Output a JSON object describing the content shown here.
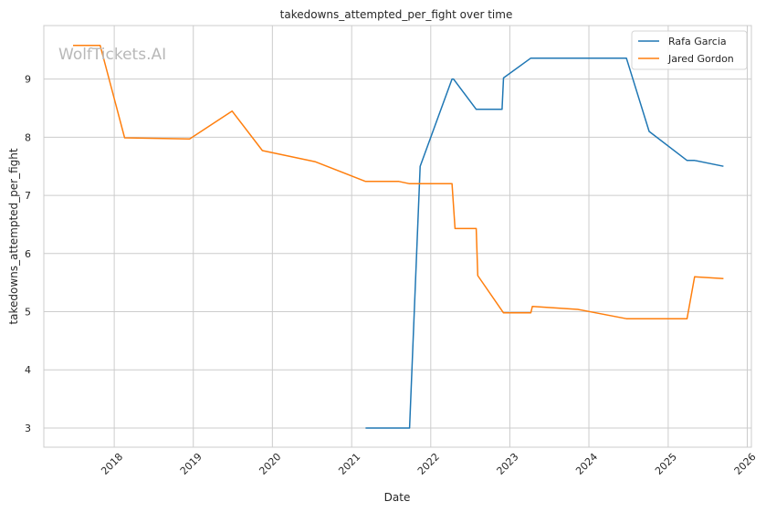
{
  "chart_data": {
    "type": "line",
    "title": "takedowns_attempted_per_fight over time",
    "xlabel": "Date",
    "ylabel": "takedowns_attempted_per_fight",
    "watermark": "WolfTickets.AI",
    "x_ticks": [
      "2018",
      "2019",
      "2020",
      "2021",
      "2022",
      "2023",
      "2024",
      "2025",
      "2026"
    ],
    "y_ticks": [
      "3",
      "4",
      "5",
      "6",
      "7",
      "8",
      "9"
    ],
    "xlim": [
      "2017-02-10",
      "2026-01-20"
    ],
    "ylim": [
      2.67,
      9.92
    ],
    "grid": true,
    "legend_position": "top-right",
    "series": [
      {
        "name": "Rafa Garcia",
        "color": "#1f77b4",
        "points": [
          [
            "2021-03-06",
            3.0
          ],
          [
            "2021-09-25",
            3.0
          ],
          [
            "2021-11-13",
            7.5
          ],
          [
            "2022-04-09",
            9.0
          ],
          [
            "2022-04-16",
            9.0
          ],
          [
            "2022-07-30",
            8.48
          ],
          [
            "2022-11-26",
            8.48
          ],
          [
            "2022-12-03",
            9.02
          ],
          [
            "2023-04-08",
            9.36
          ],
          [
            "2024-06-22",
            9.36
          ],
          [
            "2024-10-05",
            8.1
          ],
          [
            "2025-03-29",
            7.6
          ],
          [
            "2025-05-03",
            7.6
          ],
          [
            "2025-09-13",
            7.5
          ]
        ]
      },
      {
        "name": "Jared Gordon",
        "color": "#ff7f0e",
        "points": [
          [
            "2017-06-25",
            9.58
          ],
          [
            "2017-10-28",
            9.58
          ],
          [
            "2018-02-18",
            7.99
          ],
          [
            "2018-12-15",
            7.97
          ],
          [
            "2019-06-29",
            8.45
          ],
          [
            "2019-11-16",
            7.77
          ],
          [
            "2020-07-15",
            7.58
          ],
          [
            "2021-03-06",
            7.24
          ],
          [
            "2021-08-07",
            7.24
          ],
          [
            "2021-09-25",
            7.2
          ],
          [
            "2022-04-09",
            7.2
          ],
          [
            "2022-04-23",
            6.43
          ],
          [
            "2022-07-30",
            6.43
          ],
          [
            "2022-08-06",
            5.62
          ],
          [
            "2022-12-03",
            4.98
          ],
          [
            "2023-04-08",
            4.98
          ],
          [
            "2023-04-15",
            5.09
          ],
          [
            "2023-11-11",
            5.04
          ],
          [
            "2024-06-22",
            4.88
          ],
          [
            "2025-03-29",
            4.88
          ],
          [
            "2025-05-03",
            5.6
          ],
          [
            "2025-09-13",
            5.57
          ]
        ]
      }
    ]
  }
}
